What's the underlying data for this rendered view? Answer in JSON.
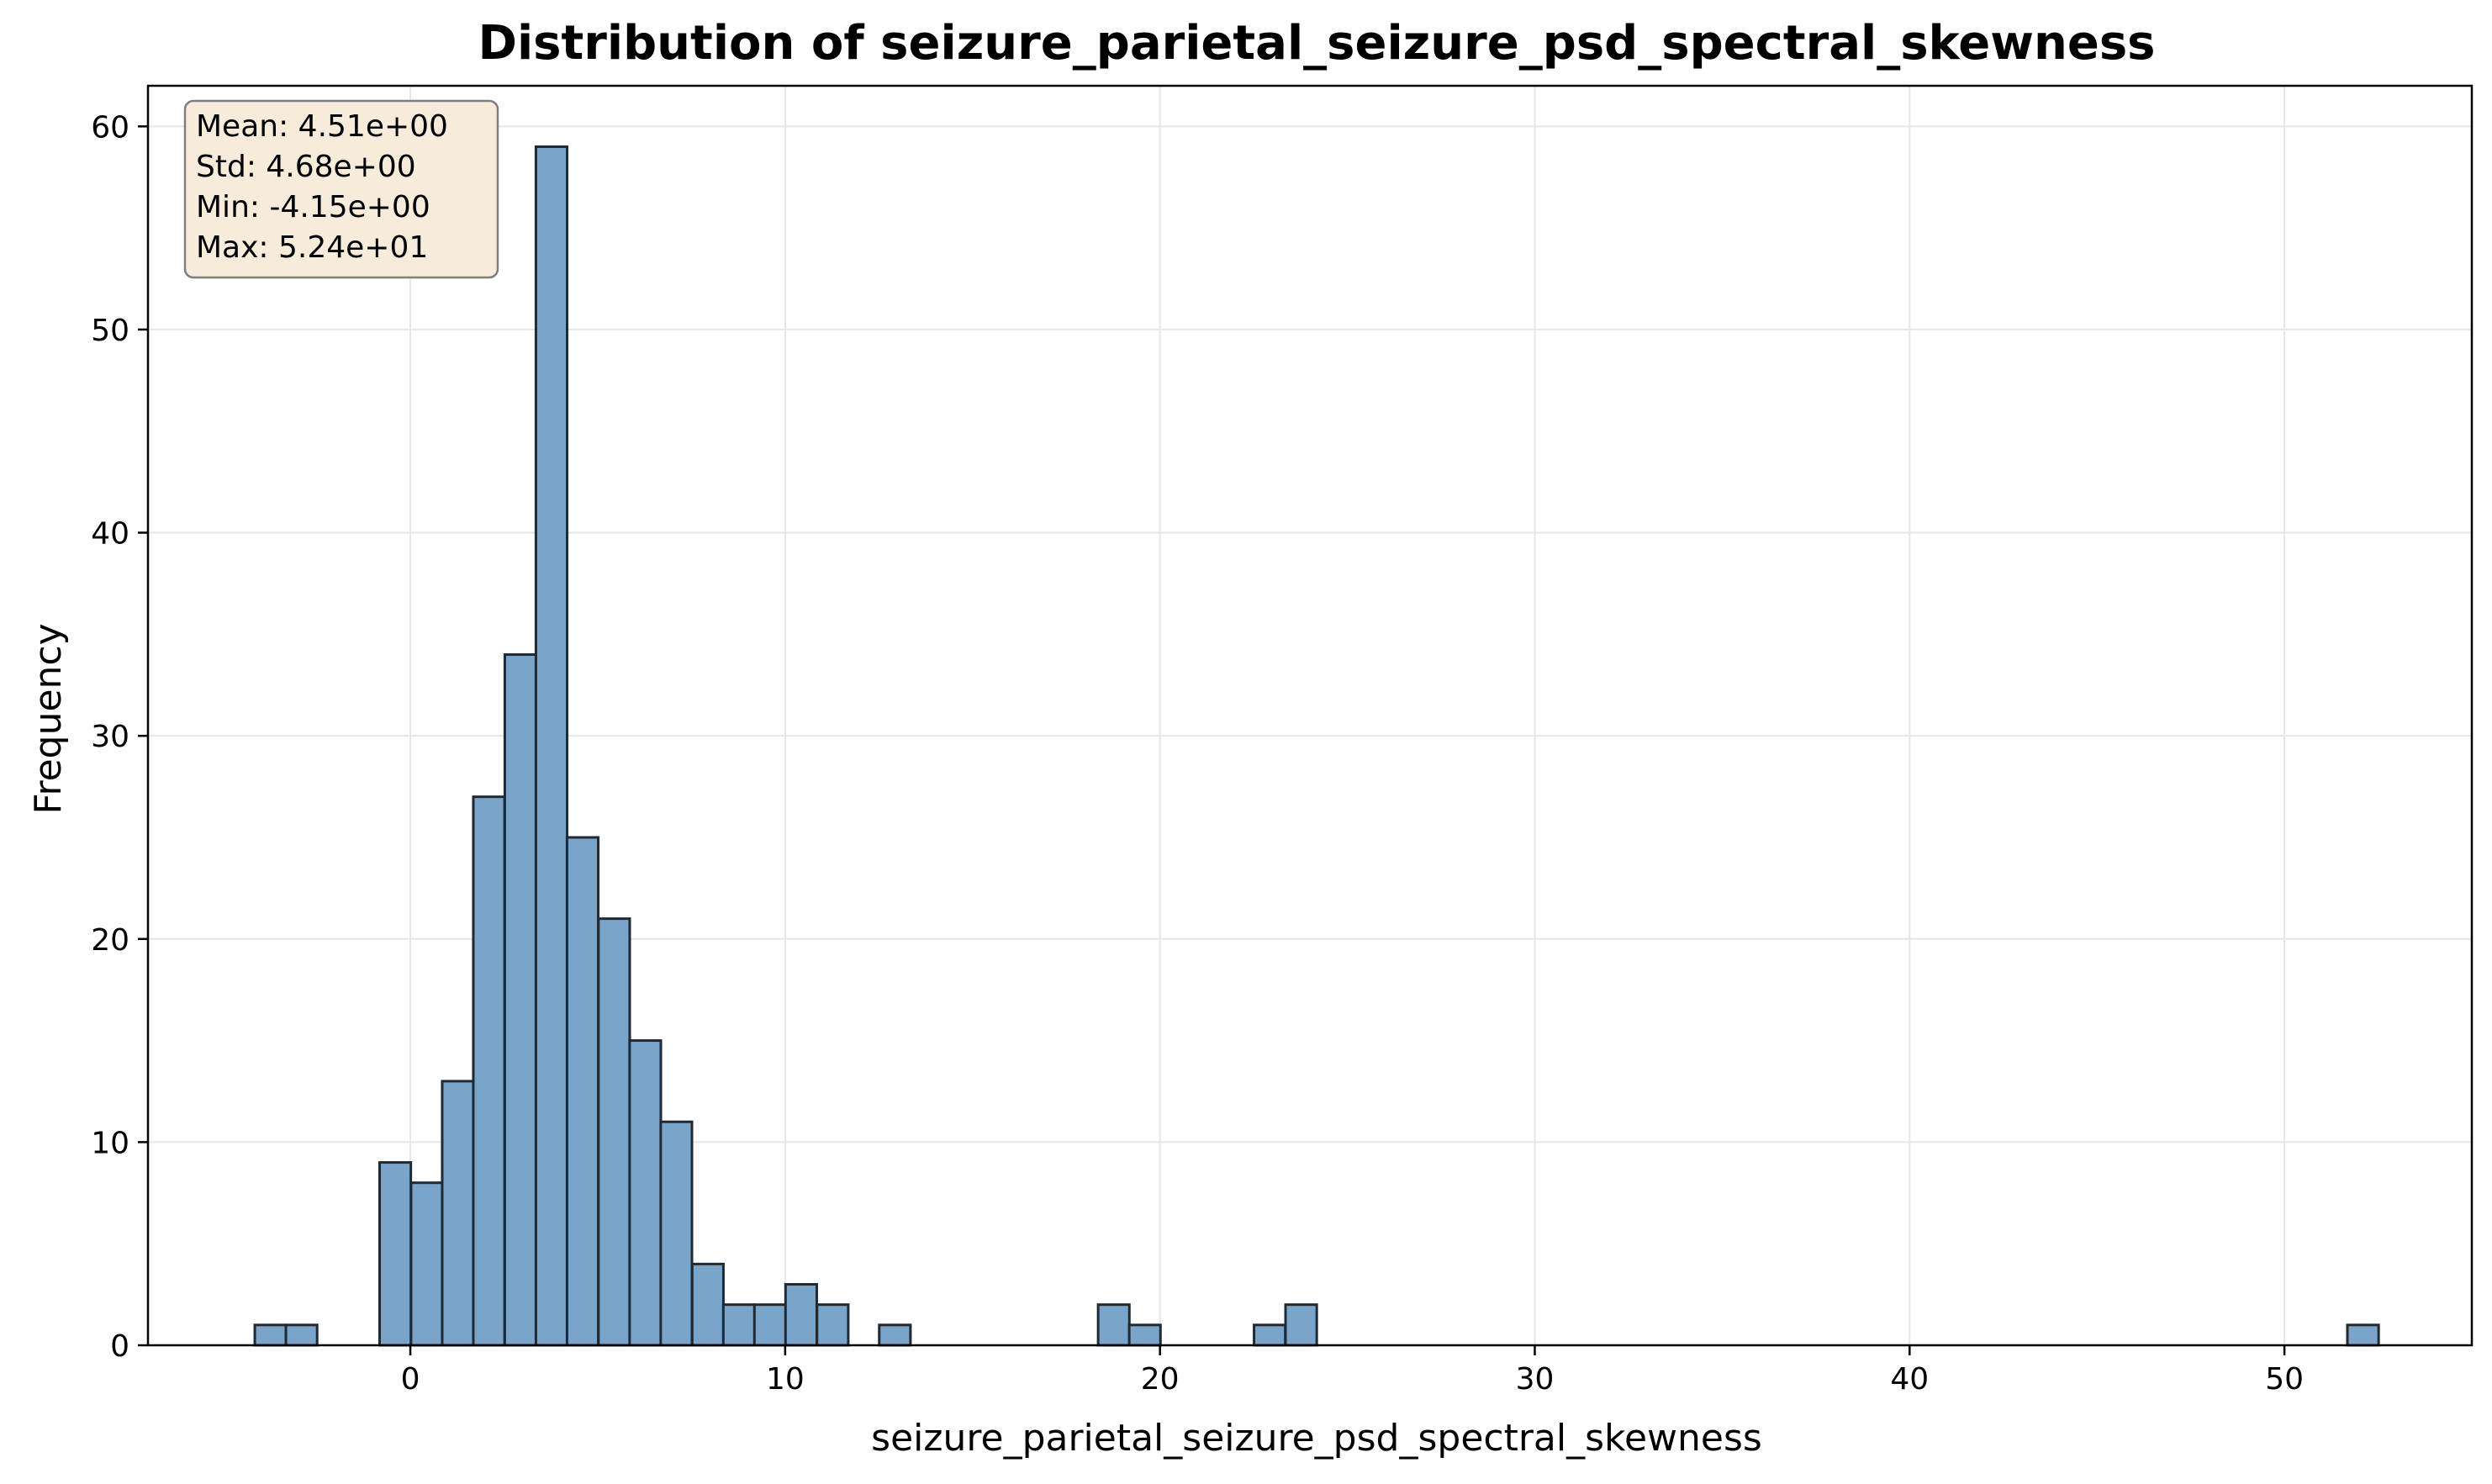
{
  "chart_data": {
    "type": "bar",
    "title": "Distribution of seizure_parietal_seizure_psd_spectral_skewness",
    "xlabel": "seizure_parietal_seizure_psd_spectral_skewness",
    "ylabel": "Frequency",
    "xlim": [
      -7.0,
      55.0
    ],
    "ylim": [
      0,
      62
    ],
    "x_ticks": [
      0,
      10,
      20,
      30,
      40,
      50
    ],
    "y_ticks": [
      0,
      10,
      20,
      30,
      40,
      50,
      60
    ],
    "grid": true,
    "bin_min": -4.15,
    "bin_width": 0.8332,
    "bins": [
      {
        "x0": -4.15,
        "count": 1
      },
      {
        "x0": -3.32,
        "count": 1
      },
      {
        "x0": -0.82,
        "count": 9
      },
      {
        "x0": 0.02,
        "count": 8
      },
      {
        "x0": 0.85,
        "count": 13
      },
      {
        "x0": 1.68,
        "count": 27
      },
      {
        "x0": 2.52,
        "count": 34
      },
      {
        "x0": 3.35,
        "count": 59
      },
      {
        "x0": 4.18,
        "count": 25
      },
      {
        "x0": 5.02,
        "count": 21
      },
      {
        "x0": 5.85,
        "count": 15
      },
      {
        "x0": 6.68,
        "count": 11
      },
      {
        "x0": 7.52,
        "count": 4
      },
      {
        "x0": 8.35,
        "count": 2
      },
      {
        "x0": 9.18,
        "count": 2
      },
      {
        "x0": 10.01,
        "count": 3
      },
      {
        "x0": 10.85,
        "count": 2
      },
      {
        "x0": 12.51,
        "count": 1
      },
      {
        "x0": 18.35,
        "count": 2
      },
      {
        "x0": 19.18,
        "count": 1
      },
      {
        "x0": 22.51,
        "count": 1
      },
      {
        "x0": 23.35,
        "count": 2
      },
      {
        "x0": 51.68,
        "count": 1
      }
    ],
    "stats": {
      "mean": "Mean: 4.51e+00",
      "std": "Std: 4.68e+00",
      "min": "Min: -4.15e+00",
      "max": "Max: 5.24e+01"
    },
    "colors": {
      "bar_fill": "#7aa5cb",
      "bar_edge": "#1f2a33",
      "grid": "#e6e6e6",
      "stats_box_fill": "#f6ecd9",
      "stats_box_edge": "#7f7f7f"
    }
  }
}
